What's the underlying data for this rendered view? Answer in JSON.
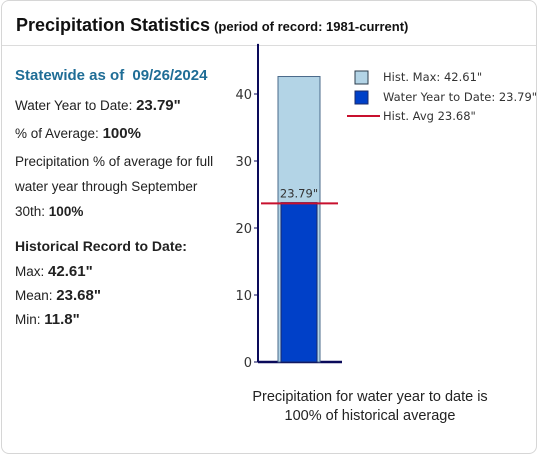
{
  "header": {
    "title": "Precipitation Statistics",
    "subtitle": "(period of record: 1981-current)"
  },
  "statewide": {
    "label": "Statewide as of",
    "date": "09/26/2024",
    "wytd_label": "Water Year to Date:",
    "wytd_value": "23.79\"",
    "pct_label": "% of Average:",
    "pct_value": "100%",
    "full_year_text": "Precipitation % of average for full water year through September 30th:",
    "full_year_value": "100%"
  },
  "historical": {
    "heading": "Historical Record to Date:",
    "max_label": "Max:",
    "max_value": "42.61\"",
    "mean_label": "Mean:",
    "mean_value": "23.68\"",
    "min_label": "Min:",
    "min_value": "11.8\""
  },
  "caption": {
    "line1": "Precipitation for water year to date is",
    "line2": "100% of historical average"
  },
  "chart_data": {
    "type": "bar",
    "ylim": [
      0,
      43
    ],
    "yticks": [
      0,
      10,
      20,
      30,
      40
    ],
    "series": [
      {
        "name": "Hist. Max: 42.61\"",
        "value": 42.61,
        "color": "#b3d4e6"
      },
      {
        "name": "Water Year to Date: 23.79\"",
        "value": 23.79,
        "color": "#0040c8"
      }
    ],
    "reference_line": {
      "name": "Hist. Avg 23.68\"",
      "value": 23.68,
      "color": "#c8102e"
    },
    "bar_label": "23.79\"",
    "legend_position": "top-right"
  }
}
